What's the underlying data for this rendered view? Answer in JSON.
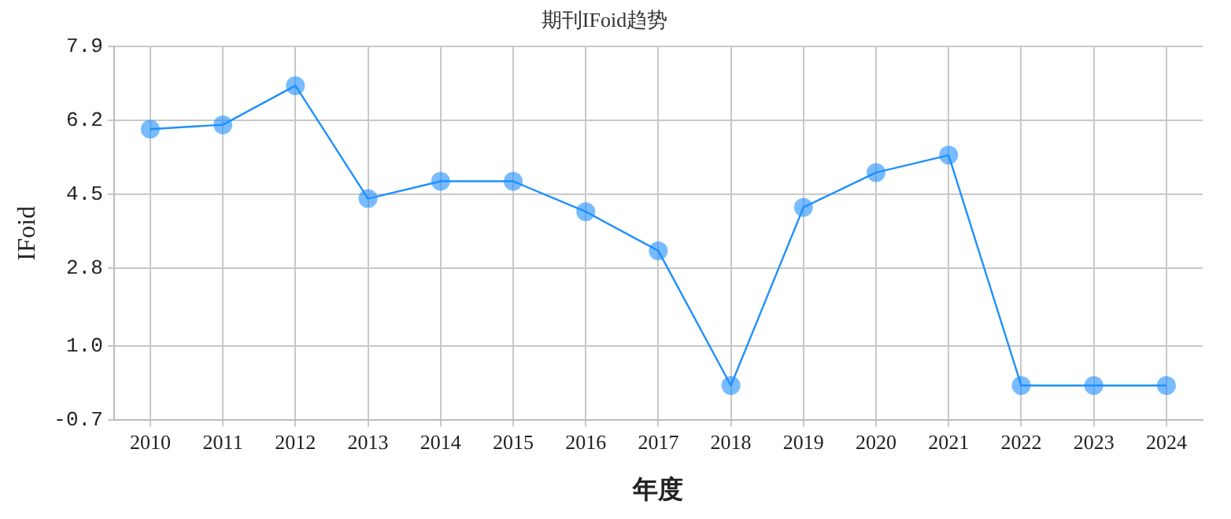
{
  "chart_data": {
    "type": "line",
    "title": "期刊IFoid趋势",
    "xlabel": "年度",
    "ylabel": "IFoid",
    "categories": [
      "2010",
      "2011",
      "2012",
      "2013",
      "2014",
      "2015",
      "2016",
      "2017",
      "2018",
      "2019",
      "2020",
      "2021",
      "2022",
      "2023",
      "2024"
    ],
    "series": [
      {
        "color": "#1e90ff",
        "values": [
          6.0,
          6.1,
          7.0,
          4.4,
          4.8,
          4.8,
          4.1,
          3.2,
          0.1,
          4.2,
          5.0,
          5.4,
          0.1,
          0.1,
          0.1
        ]
      }
    ],
    "ylim": [
      -0.7,
      7.9
    ],
    "yticks": [
      -0.7,
      {
        "value": 1,
        "label": "1.0"
      },
      2.8,
      4.5,
      6.2,
      7.9
    ],
    "grid": true,
    "legend": false,
    "marker": "circle",
    "line_style": "solid"
  }
}
